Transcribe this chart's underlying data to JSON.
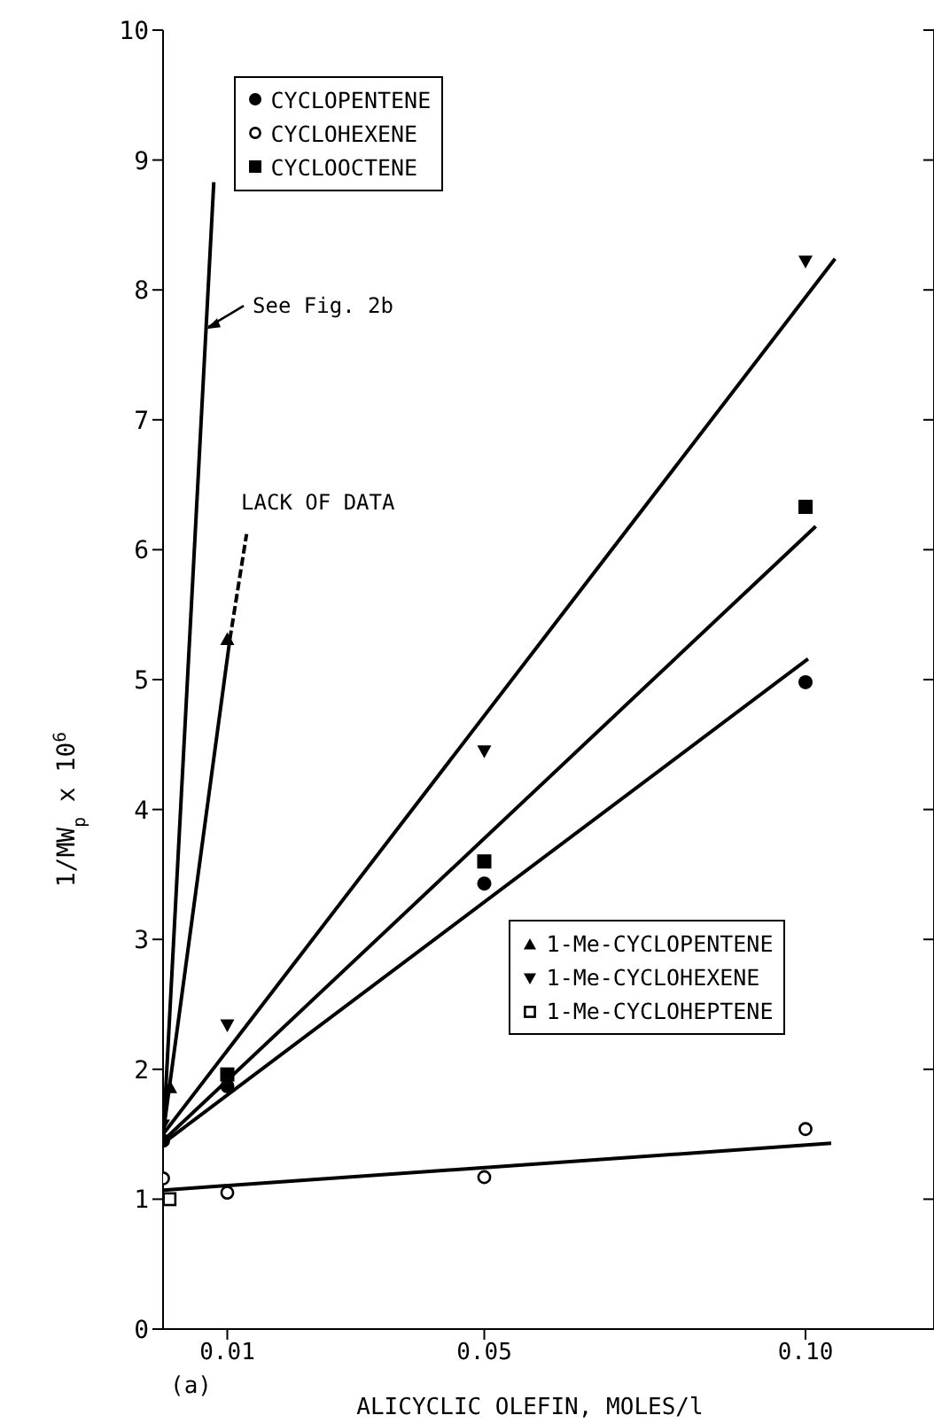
{
  "chart_data": {
    "type": "scatter",
    "xlabel": "ALICYCLIC OLEFIN, MOLES/l",
    "ylabel": "1/MW$_{p}$ x 10$^{6}$",
    "xlim": [
      0,
      0.12
    ],
    "xticks": [
      0.01,
      0.05,
      {
        "value": 0.1,
        "label": "0.10"
      }
    ],
    "ylim": [
      0,
      10
    ],
    "yticks": [
      0,
      1,
      2,
      3,
      4,
      5,
      6,
      7,
      8,
      9,
      10
    ],
    "grid": false,
    "legend": "top left",
    "series": [
      {
        "name": "CYCLOPENTENE",
        "color": "#000000",
        "marker": "circle",
        "x": [
          0,
          0.01,
          0.05,
          0.1
        ],
        "values": [
          1.45,
          1.87,
          3.43,
          4.98
        ]
      },
      {
        "name": "CYCLOHEXENE",
        "color": "#000000",
        "marker": "circle-open",
        "x": [
          0,
          0.01,
          0.05,
          0.1
        ],
        "values": [
          1.16,
          1.05,
          1.17,
          1.54
        ]
      },
      {
        "name": "CYCLOOCTENE",
        "color": "#000000",
        "marker": "square",
        "x": [
          0.01,
          0.05,
          0.1
        ],
        "values": [
          1.96,
          3.6,
          6.33
        ]
      },
      {
        "name": "1-Me-CYCLOPENTENE",
        "color": "#000000",
        "marker": "triangle",
        "x": [
          0.0011,
          0.01
        ],
        "values": [
          1.86,
          5.31
        ]
      },
      {
        "name": "1-Me-CYCLOHEXENE",
        "color": "#000000",
        "marker": "triangle-down",
        "x": [
          0,
          0.01,
          0.05,
          0.1
        ],
        "values": [
          1.57,
          2.34,
          4.45,
          8.22
        ]
      },
      {
        "name": "1-Me-CYCLOHEPTENE",
        "color": "#000000",
        "marker": "square-open",
        "x": [
          0.001
        ],
        "values": [
          1.0
        ]
      },
      {
        "type": "line",
        "color": "#000000",
        "line_style": "solid",
        "x": [
          0,
          0.104
        ],
        "values": [
          1.07,
          1.43
        ]
      },
      {
        "type": "line",
        "color": "#000000",
        "line_style": "solid",
        "x": [
          0,
          0.1004
        ],
        "values": [
          1.43,
          5.16
        ]
      },
      {
        "type": "line",
        "color": "#000000",
        "line_style": "solid",
        "x": [
          0,
          0.1016
        ],
        "values": [
          1.45,
          6.18
        ]
      },
      {
        "type": "line",
        "color": "#000000",
        "line_style": "solid",
        "x": [
          0,
          0.1046
        ],
        "values": [
          1.5,
          8.24
        ]
      },
      {
        "type": "line",
        "color": "#000000",
        "line_style": "solid",
        "x": [
          0,
          0.0079
        ],
        "values": [
          1.45,
          8.83
        ]
      },
      {
        "type": "line",
        "color": "#000000",
        "line_style": "solid",
        "x": [
          0,
          0.0104
        ],
        "values": [
          1.5,
          5.31
        ]
      },
      {
        "type": "line",
        "color": "#000000",
        "line_style": "dashed",
        "x": [
          0.0104,
          0.013
        ],
        "values": [
          5.31,
          6.12
        ]
      }
    ],
    "annotations": [
      {
        "text": "See Fig. 2b",
        "x": 0.0065,
        "y": 7.7
      },
      {
        "text": "LACK OF DATA",
        "x": 0.013,
        "y": 6.12
      },
      "(a)"
    ]
  }
}
